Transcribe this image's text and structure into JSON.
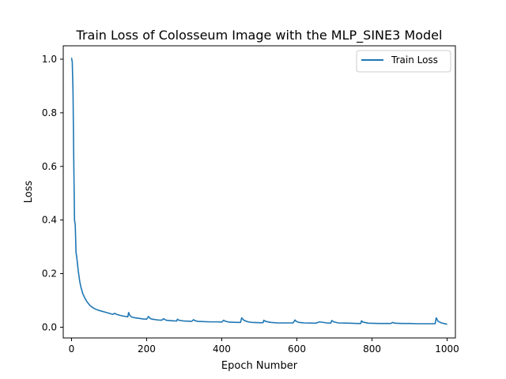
{
  "chart_data": {
    "type": "line",
    "title": "Train Loss of Colosseum Image with the MLP_SINE3 Model",
    "xlabel": "Epoch Number",
    "ylabel": "Loss",
    "xlim": [
      -22,
      1022
    ],
    "ylim": [
      -0.04,
      1.05
    ],
    "xticks": [
      0,
      200,
      400,
      600,
      800,
      1000
    ],
    "yticks": [
      0.0,
      0.2,
      0.4,
      0.6,
      0.8,
      1.0
    ],
    "xtick_labels": [
      "0",
      "200",
      "400",
      "600",
      "800",
      "1000"
    ],
    "ytick_labels": [
      "0.0",
      "0.2",
      "0.4",
      "0.6",
      "0.8",
      "1.0"
    ],
    "grid": false,
    "legend_position": "top-right",
    "series": [
      {
        "name": "Train Loss",
        "color": "#1f77b4",
        "x": [
          0,
          2,
          4,
          6,
          8,
          10,
          12,
          14,
          16,
          18,
          20,
          22,
          25,
          30,
          35,
          40,
          45,
          50,
          55,
          60,
          65,
          70,
          80,
          90,
          100,
          110,
          115,
          120,
          130,
          140,
          150,
          152,
          155,
          160,
          170,
          180,
          190,
          200,
          205,
          208,
          212,
          220,
          230,
          240,
          245,
          248,
          252,
          260,
          270,
          280,
          282,
          286,
          300,
          320,
          325,
          328,
          335,
          350,
          370,
          390,
          400,
          405,
          410,
          420,
          440,
          450,
          453,
          456,
          460,
          470,
          480,
          500,
          510,
          512,
          516,
          530,
          550,
          570,
          590,
          595,
          598,
          605,
          620,
          650,
          660,
          680,
          690,
          693,
          698,
          710,
          740,
          760,
          770,
          772,
          776,
          790,
          820,
          850,
          855,
          860,
          880,
          900,
          920,
          940,
          960,
          968,
          971,
          976,
          985,
          1000
        ],
        "y": [
          1.005,
          0.99,
          0.88,
          0.62,
          0.4,
          0.38,
          0.28,
          0.26,
          0.235,
          0.21,
          0.19,
          0.17,
          0.15,
          0.125,
          0.11,
          0.098,
          0.088,
          0.08,
          0.075,
          0.07,
          0.067,
          0.064,
          0.06,
          0.056,
          0.052,
          0.048,
          0.052,
          0.048,
          0.044,
          0.041,
          0.039,
          0.055,
          0.045,
          0.038,
          0.035,
          0.033,
          0.031,
          0.03,
          0.04,
          0.035,
          0.031,
          0.029,
          0.027,
          0.026,
          0.032,
          0.029,
          0.026,
          0.025,
          0.024,
          0.023,
          0.03,
          0.026,
          0.023,
          0.022,
          0.028,
          0.025,
          0.022,
          0.021,
          0.02,
          0.02,
          0.019,
          0.026,
          0.022,
          0.019,
          0.018,
          0.018,
          0.035,
          0.03,
          0.025,
          0.02,
          0.018,
          0.017,
          0.017,
          0.026,
          0.022,
          0.018,
          0.016,
          0.016,
          0.016,
          0.027,
          0.022,
          0.018,
          0.016,
          0.015,
          0.02,
          0.016,
          0.015,
          0.025,
          0.02,
          0.016,
          0.015,
          0.014,
          0.014,
          0.024,
          0.019,
          0.015,
          0.014,
          0.014,
          0.018,
          0.015,
          0.014,
          0.014,
          0.013,
          0.013,
          0.013,
          0.013,
          0.035,
          0.022,
          0.016,
          0.011
        ]
      }
    ]
  }
}
